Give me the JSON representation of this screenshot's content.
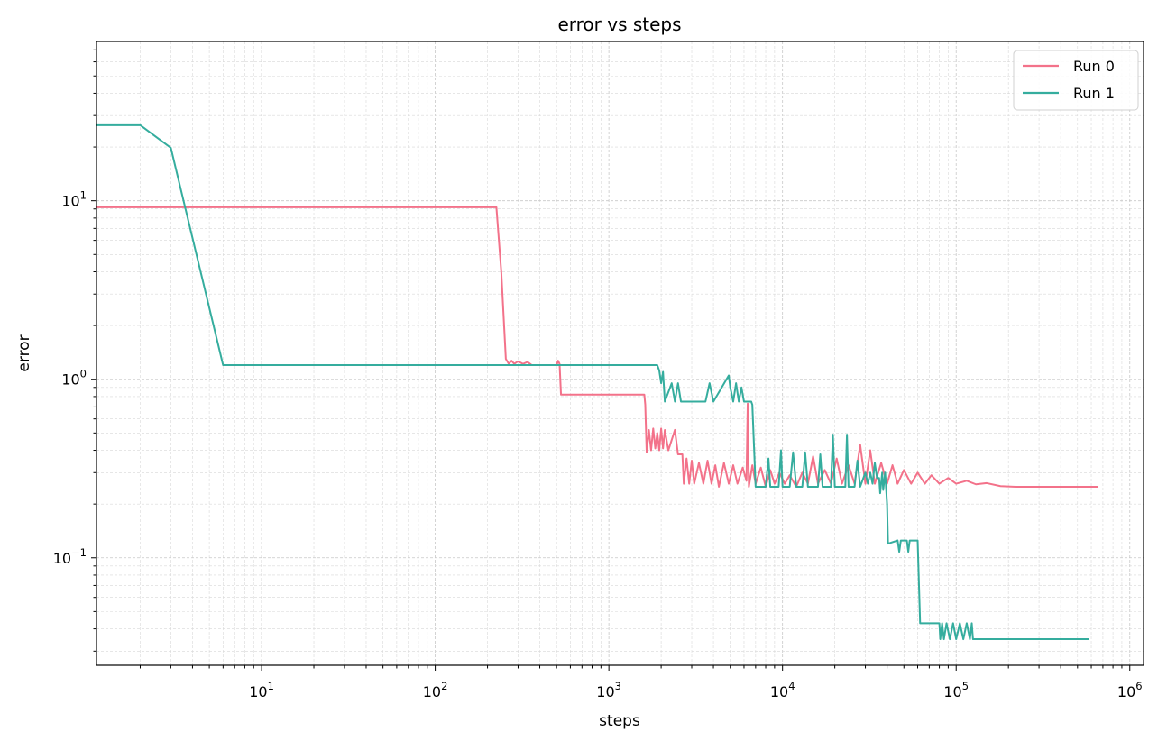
{
  "chart_data": {
    "type": "line",
    "title": "error vs steps",
    "xlabel": "steps",
    "ylabel": "error",
    "xscale": "log",
    "yscale": "log",
    "xlim": [
      1.12,
      1200000
    ],
    "ylim": [
      0.025,
      78
    ],
    "grid": true,
    "legend_position": "top-right",
    "x_ticks": [
      {
        "value": 10,
        "base": "10",
        "exp": "1"
      },
      {
        "value": 100,
        "base": "10",
        "exp": "2"
      },
      {
        "value": 1000,
        "base": "10",
        "exp": "3"
      },
      {
        "value": 10000,
        "base": "10",
        "exp": "4"
      },
      {
        "value": 100000,
        "base": "10",
        "exp": "5"
      },
      {
        "value": 1000000,
        "base": "10",
        "exp": "6"
      }
    ],
    "y_ticks": [
      {
        "value": 0.1,
        "base": "10",
        "exp": "−1"
      },
      {
        "value": 1,
        "base": "10",
        "exp": "0"
      },
      {
        "value": 10,
        "base": "10",
        "exp": "1"
      }
    ],
    "series": [
      {
        "name": "Run 0",
        "color": "#f3728a",
        "points": [
          [
            1,
            9.2
          ],
          [
            225,
            9.2
          ],
          [
            240,
            4
          ],
          [
            255,
            1.3
          ],
          [
            265,
            1.22
          ],
          [
            275,
            1.27
          ],
          [
            285,
            1.22
          ],
          [
            300,
            1.26
          ],
          [
            320,
            1.22
          ],
          [
            340,
            1.25
          ],
          [
            360,
            1.2
          ],
          [
            500,
            1.2
          ],
          [
            510,
            1.27
          ],
          [
            520,
            1.22
          ],
          [
            530,
            0.82
          ],
          [
            1600,
            0.82
          ],
          [
            1620,
            0.72
          ],
          [
            1650,
            0.39
          ],
          [
            1700,
            0.52
          ],
          [
            1750,
            0.4
          ],
          [
            1800,
            0.53
          ],
          [
            1850,
            0.41
          ],
          [
            1900,
            0.5
          ],
          [
            1950,
            0.4
          ],
          [
            2000,
            0.53
          ],
          [
            2050,
            0.41
          ],
          [
            2100,
            0.52
          ],
          [
            2200,
            0.4
          ],
          [
            2400,
            0.52
          ],
          [
            2500,
            0.38
          ],
          [
            2650,
            0.38
          ],
          [
            2700,
            0.26
          ],
          [
            2800,
            0.36
          ],
          [
            2900,
            0.26
          ],
          [
            3000,
            0.35
          ],
          [
            3100,
            0.26
          ],
          [
            3300,
            0.34
          ],
          [
            3500,
            0.26
          ],
          [
            3700,
            0.35
          ],
          [
            3900,
            0.26
          ],
          [
            4100,
            0.33
          ],
          [
            4300,
            0.25
          ],
          [
            4600,
            0.34
          ],
          [
            4900,
            0.26
          ],
          [
            5200,
            0.33
          ],
          [
            5500,
            0.26
          ],
          [
            5900,
            0.32
          ],
          [
            6200,
            0.27
          ],
          [
            6300,
            0.73
          ],
          [
            6400,
            0.25
          ],
          [
            6700,
            0.33
          ],
          [
            7000,
            0.26
          ],
          [
            7500,
            0.32
          ],
          [
            8000,
            0.25
          ],
          [
            8500,
            0.31
          ],
          [
            9000,
            0.26
          ],
          [
            9600,
            0.3
          ],
          [
            10300,
            0.26
          ],
          [
            11000,
            0.29
          ],
          [
            12000,
            0.25
          ],
          [
            13000,
            0.3
          ],
          [
            14000,
            0.26
          ],
          [
            15000,
            0.37
          ],
          [
            16000,
            0.26
          ],
          [
            17500,
            0.31
          ],
          [
            19000,
            0.26
          ],
          [
            20500,
            0.36
          ],
          [
            22000,
            0.26
          ],
          [
            24000,
            0.33
          ],
          [
            26000,
            0.26
          ],
          [
            28000,
            0.43
          ],
          [
            30000,
            0.26
          ],
          [
            32000,
            0.4
          ],
          [
            34000,
            0.26
          ],
          [
            37000,
            0.34
          ],
          [
            40000,
            0.26
          ],
          [
            43000,
            0.33
          ],
          [
            46000,
            0.26
          ],
          [
            50000,
            0.31
          ],
          [
            55000,
            0.26
          ],
          [
            60000,
            0.3
          ],
          [
            66000,
            0.26
          ],
          [
            72000,
            0.29
          ],
          [
            80000,
            0.26
          ],
          [
            90000,
            0.28
          ],
          [
            100000,
            0.26
          ],
          [
            115000,
            0.27
          ],
          [
            130000,
            0.258
          ],
          [
            150000,
            0.262
          ],
          [
            180000,
            0.252
          ],
          [
            220000,
            0.25
          ],
          [
            660000,
            0.25
          ]
        ]
      },
      {
        "name": "Run 1",
        "color": "#35ad9e",
        "points": [
          [
            1,
            26.5
          ],
          [
            2,
            26.5
          ],
          [
            3,
            19.8
          ],
          [
            6,
            1.2
          ],
          [
            1900,
            1.2
          ],
          [
            1950,
            1.12
          ],
          [
            2000,
            0.95
          ],
          [
            2050,
            1.1
          ],
          [
            2100,
            0.75
          ],
          [
            2300,
            0.95
          ],
          [
            2400,
            0.75
          ],
          [
            2500,
            0.95
          ],
          [
            2600,
            0.75
          ],
          [
            3600,
            0.75
          ],
          [
            3800,
            0.95
          ],
          [
            4000,
            0.75
          ],
          [
            4900,
            1.05
          ],
          [
            5000,
            0.9
          ],
          [
            5200,
            0.75
          ],
          [
            5400,
            0.95
          ],
          [
            5600,
            0.75
          ],
          [
            5800,
            0.9
          ],
          [
            6000,
            0.75
          ],
          [
            6600,
            0.75
          ],
          [
            6700,
            0.72
          ],
          [
            7000,
            0.25
          ],
          [
            8000,
            0.25
          ],
          [
            8300,
            0.36
          ],
          [
            8500,
            0.25
          ],
          [
            9500,
            0.25
          ],
          [
            9800,
            0.4
          ],
          [
            10000,
            0.25
          ],
          [
            11000,
            0.25
          ],
          [
            11500,
            0.39
          ],
          [
            12000,
            0.25
          ],
          [
            13000,
            0.25
          ],
          [
            13500,
            0.39
          ],
          [
            14000,
            0.25
          ],
          [
            16000,
            0.25
          ],
          [
            16500,
            0.38
          ],
          [
            17000,
            0.25
          ],
          [
            19000,
            0.25
          ],
          [
            19500,
            0.49
          ],
          [
            20000,
            0.25
          ],
          [
            23000,
            0.25
          ],
          [
            23500,
            0.49
          ],
          [
            24000,
            0.25
          ],
          [
            26000,
            0.25
          ],
          [
            27000,
            0.35
          ],
          [
            28000,
            0.25
          ],
          [
            30000,
            0.3
          ],
          [
            31000,
            0.26
          ],
          [
            32000,
            0.3
          ],
          [
            33000,
            0.26
          ],
          [
            34000,
            0.34
          ],
          [
            35000,
            0.28
          ],
          [
            36000,
            0.28
          ],
          [
            36500,
            0.23
          ],
          [
            37500,
            0.3
          ],
          [
            38000,
            0.24
          ],
          [
            39000,
            0.3
          ],
          [
            40000,
            0.2
          ],
          [
            40500,
            0.12
          ],
          [
            46000,
            0.125
          ],
          [
            47000,
            0.108
          ],
          [
            48000,
            0.125
          ],
          [
            52000,
            0.125
          ],
          [
            53000,
            0.108
          ],
          [
            54000,
            0.125
          ],
          [
            60000,
            0.125
          ],
          [
            62000,
            0.043
          ],
          [
            80000,
            0.043
          ],
          [
            81000,
            0.035
          ],
          [
            83000,
            0.043
          ],
          [
            85000,
            0.035
          ],
          [
            88000,
            0.043
          ],
          [
            92000,
            0.035
          ],
          [
            96000,
            0.043
          ],
          [
            100000,
            0.035
          ],
          [
            105000,
            0.043
          ],
          [
            110000,
            0.035
          ],
          [
            115000,
            0.043
          ],
          [
            120000,
            0.035
          ],
          [
            123000,
            0.043
          ],
          [
            125000,
            0.035
          ],
          [
            580000,
            0.035
          ]
        ]
      }
    ]
  }
}
